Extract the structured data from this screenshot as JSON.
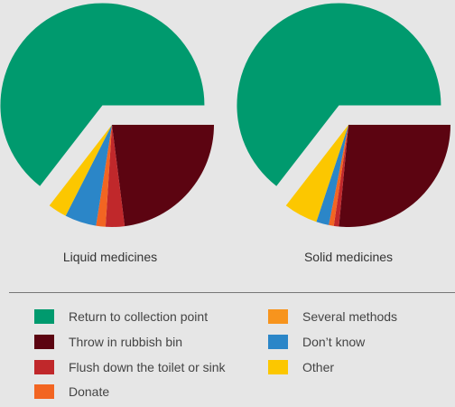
{
  "chart_data": [
    {
      "type": "pie",
      "title": "Liquid medicines",
      "categories": [
        "Return to collection point",
        "Throw in rubbish bin",
        "Flush down the toilet or sink",
        "Donate",
        "Several methods",
        "Don't know",
        "Other"
      ],
      "values": [
        64.5,
        23.0,
        3.0,
        1.5,
        0.0,
        5.0,
        3.0
      ]
    },
    {
      "type": "pie",
      "title": "Solid medicines",
      "categories": [
        "Return to collection point",
        "Throw in rubbish bin",
        "Flush down the toilet or sink",
        "Donate",
        "Several methods",
        "Don't know",
        "Other"
      ],
      "values": [
        64.5,
        26.5,
        0.8,
        0.8,
        0.0,
        2.0,
        5.4
      ]
    }
  ],
  "colors": [
    "#009a6e",
    "#5c0411",
    "#c0282b",
    "#f26522",
    "#f7941d",
    "#2b86c8",
    "#fcc700"
  ],
  "legend": [
    {
      "label": "Return to collection point",
      "color": "#009a6e"
    },
    {
      "label": "Throw in rubbish bin",
      "color": "#5c0411"
    },
    {
      "label": "Flush down the toilet or sink",
      "color": "#c0282b"
    },
    {
      "label": "Donate",
      "color": "#f26522"
    },
    {
      "label": "Several methods",
      "color": "#f7941d"
    },
    {
      "label": "Don’t know",
      "color": "#2b86c8"
    },
    {
      "label": "Other",
      "color": "#fcc700"
    }
  ]
}
